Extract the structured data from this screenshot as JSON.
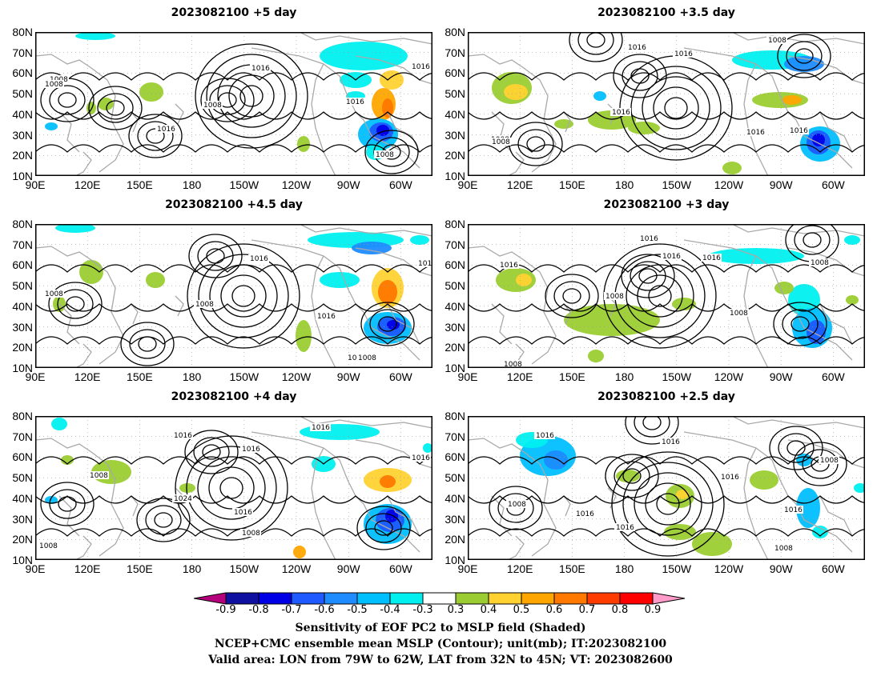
{
  "panels": [
    {
      "title": "2023082100 +5 day",
      "contour_labels": [
        "1008",
        "1016",
        "1008",
        "1016",
        "1016",
        "1016",
        "1008",
        "1008"
      ]
    },
    {
      "title": "2023082100 +3.5 day",
      "contour_labels": [
        "1016",
        "1016",
        "1008",
        "1016",
        "1008",
        "1016",
        "1016",
        "1008"
      ]
    },
    {
      "title": "2023082100 +4.5 day",
      "contour_labels": [
        "1016",
        "1008",
        "1008",
        "1016",
        "1016",
        "1008",
        "1008"
      ]
    },
    {
      "title": "2023082100 +3 day",
      "contour_labels": [
        "1016",
        "1016",
        "1016",
        "1016",
        "1008",
        "1008",
        "1008",
        "1008"
      ]
    },
    {
      "title": "2023082100 +4 day",
      "contour_labels": [
        "1016",
        "1016",
        "1016",
        "1008",
        "1024",
        "1016",
        "1008",
        "1016",
        "1008"
      ]
    },
    {
      "title": "2023082100 +2.5 day",
      "contour_labels": [
        "1016",
        "1016",
        "1016",
        "1008",
        "1016",
        "1016",
        "1008",
        "1016",
        "1008"
      ]
    }
  ],
  "axes": {
    "lat_ticks": [
      "80N",
      "70N",
      "60N",
      "50N",
      "40N",
      "30N",
      "20N",
      "10N"
    ],
    "lon_ticks": [
      "90E",
      "120E",
      "150E",
      "180",
      "150W",
      "120W",
      "90W",
      "60W"
    ]
  },
  "colorbar": {
    "ticks": [
      "-0.9",
      "-0.8",
      "-0.7",
      "-0.6",
      "-0.5",
      "-0.4",
      "-0.3",
      "0.3",
      "0.4",
      "0.5",
      "0.6",
      "0.7",
      "0.8",
      "0.9"
    ],
    "colors": [
      "#b4007a",
      "#1010a0",
      "#0000e6",
      "#1e5aff",
      "#1e8cff",
      "#00bfff",
      "#00f0f0",
      "#ffffff",
      "#9bcd32",
      "#ffd232",
      "#ffa500",
      "#ff7800",
      "#ff3c00",
      "#ff0000",
      "#ff9bc8"
    ]
  },
  "caption": {
    "line1": "Sensitivity of EOF PC2 to MSLP field (Shaded)",
    "line2": "NCEP+CMC ensemble mean MSLP (Contour); unit(mb); IT:2023082100",
    "line3": "Valid area: LON from 79W to 62W, LAT from 32N to 45N; VT: 2023082600"
  }
}
